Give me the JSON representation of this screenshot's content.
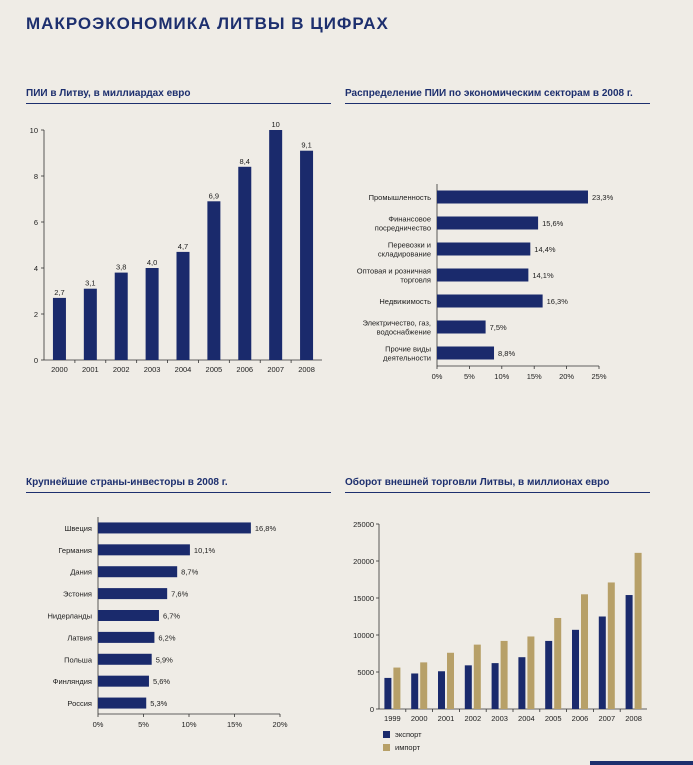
{
  "page": {
    "title": "МАКРОЭКОНОМИКА ЛИТВЫ В ЦИФРАХ"
  },
  "colors": {
    "navy": "#1a2a6c",
    "gold": "#b7a068",
    "accent": "#1d2f6e"
  },
  "chart_data": [
    {
      "type": "bar",
      "title": "ПИИ в Литву, в миллиардах евро",
      "categories": [
        "2000",
        "2001",
        "2002",
        "2003",
        "2004",
        "2005",
        "2006",
        "2007",
        "2008"
      ],
      "values": [
        2.7,
        3.1,
        3.8,
        4.0,
        4.7,
        6.9,
        8.4,
        10,
        9.1
      ],
      "value_labels": [
        "2,7",
        "3,1",
        "3,8",
        "4,0",
        "4,7",
        "6,9",
        "8,4",
        "10",
        "9,1"
      ],
      "ylim": [
        0,
        10
      ],
      "yticks": [
        0,
        2,
        4,
        6,
        8,
        10
      ],
      "ytick_labels": [
        "0",
        "2",
        "4",
        "6",
        "8",
        "10"
      ],
      "grid": false
    },
    {
      "type": "bar",
      "orientation": "horizontal",
      "title": "Распределение ПИИ по экономическим секторам в 2008 г.",
      "categories": [
        [
          "Промышленность"
        ],
        [
          "Финансовое",
          "посредничество"
        ],
        [
          "Перевозки и",
          "складирование"
        ],
        [
          "Оптовая и розничная",
          "торговля"
        ],
        [
          "Недвижимость"
        ],
        [
          "Электричество, газ,",
          "водоснабжение"
        ],
        [
          "Прочие виды",
          "деятельности"
        ]
      ],
      "values": [
        23.3,
        15.6,
        14.4,
        14.1,
        16.3,
        7.5,
        8.8
      ],
      "value_labels": [
        "23,3%",
        "15,6%",
        "14,4%",
        "14,1%",
        "16,3%",
        "7,5%",
        "8,8%"
      ],
      "xlim": [
        0,
        25
      ],
      "xticks": [
        0,
        5,
        10,
        15,
        20,
        25
      ],
      "xtick_labels": [
        "0%",
        "5%",
        "10%",
        "15%",
        "20%",
        "25%"
      ],
      "grid": false
    },
    {
      "type": "bar",
      "orientation": "horizontal",
      "title": "Крупнейшие страны-инвесторы в 2008 г.",
      "categories": [
        [
          "Швеция"
        ],
        [
          "Германия"
        ],
        [
          "Дания"
        ],
        [
          "Эстония"
        ],
        [
          "Нидерланды"
        ],
        [
          "Латвия"
        ],
        [
          "Польша"
        ],
        [
          "Финляндия"
        ],
        [
          "Россия"
        ]
      ],
      "values": [
        16.8,
        10.1,
        8.7,
        7.6,
        6.7,
        6.2,
        5.9,
        5.6,
        5.3
      ],
      "value_labels": [
        "16,8%",
        "10,1%",
        "8,7%",
        "7,6%",
        "6,7%",
        "6,2%",
        "5,9%",
        "5,6%",
        "5,3%"
      ],
      "xlim": [
        0,
        20
      ],
      "xticks": [
        0,
        5,
        10,
        15,
        20
      ],
      "xtick_labels": [
        "0%",
        "5%",
        "10%",
        "15%",
        "20%"
      ],
      "grid": false
    },
    {
      "type": "bar",
      "title": "Оборот внешней торговли Литвы, в миллионах евро",
      "categories": [
        "1999",
        "2000",
        "2001",
        "2002",
        "2003",
        "2004",
        "2005",
        "2006",
        "2007",
        "2008"
      ],
      "series": [
        {
          "name": "экспорт",
          "color": "#1a2a6c",
          "values": [
            4200,
            4800,
            5100,
            5900,
            6200,
            7000,
            9200,
            10700,
            12500,
            15400
          ]
        },
        {
          "name": "импорт",
          "color": "#b7a068",
          "values": [
            5600,
            6300,
            7600,
            8700,
            9200,
            9800,
            12300,
            15500,
            17100,
            21100
          ]
        }
      ],
      "ylim": [
        0,
        25000
      ],
      "yticks": [
        0,
        5000,
        10000,
        15000,
        20000,
        25000
      ],
      "ytick_labels": [
        "0",
        "5000",
        "10000",
        "15000",
        "20000",
        "25000"
      ],
      "legend": "bottom-left",
      "grid": false
    }
  ]
}
